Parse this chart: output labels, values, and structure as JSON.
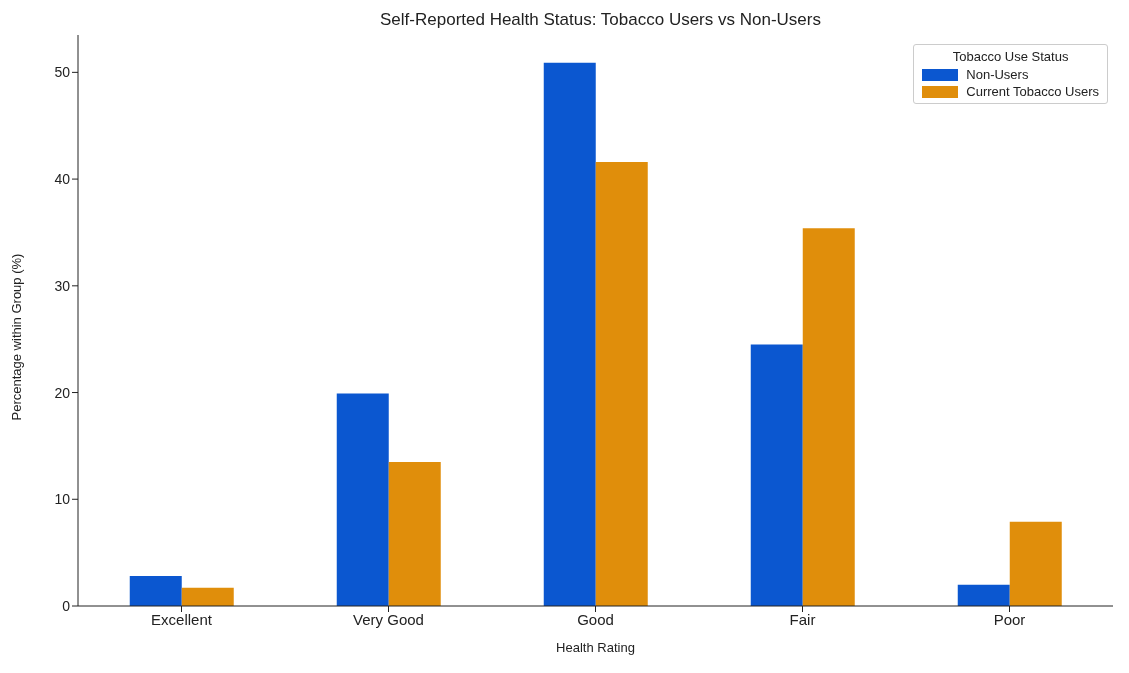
{
  "chart_data": {
    "type": "bar",
    "title": "Self-Reported Health Status: Tobacco Users vs Non-Users",
    "xlabel": "Health Rating",
    "ylabel": "Percentage within Group (%)",
    "legend_title": "Tobacco Use Status",
    "categories": [
      "Excellent",
      "Very Good",
      "Good",
      "Fair",
      "Poor"
    ],
    "series": [
      {
        "name": "Non-Users",
        "color": "#0b57d0",
        "values": [
          2.8,
          19.9,
          50.9,
          24.5,
          2.0
        ]
      },
      {
        "name": "Current Tobacco Users",
        "color": "#e08e0b",
        "values": [
          1.7,
          13.5,
          41.6,
          35.4,
          7.9
        ]
      }
    ],
    "ylim": [
      0,
      53.5
    ],
    "yticks": [
      0,
      10,
      20,
      30,
      40,
      50
    ],
    "grid": false,
    "legend": "top right"
  }
}
